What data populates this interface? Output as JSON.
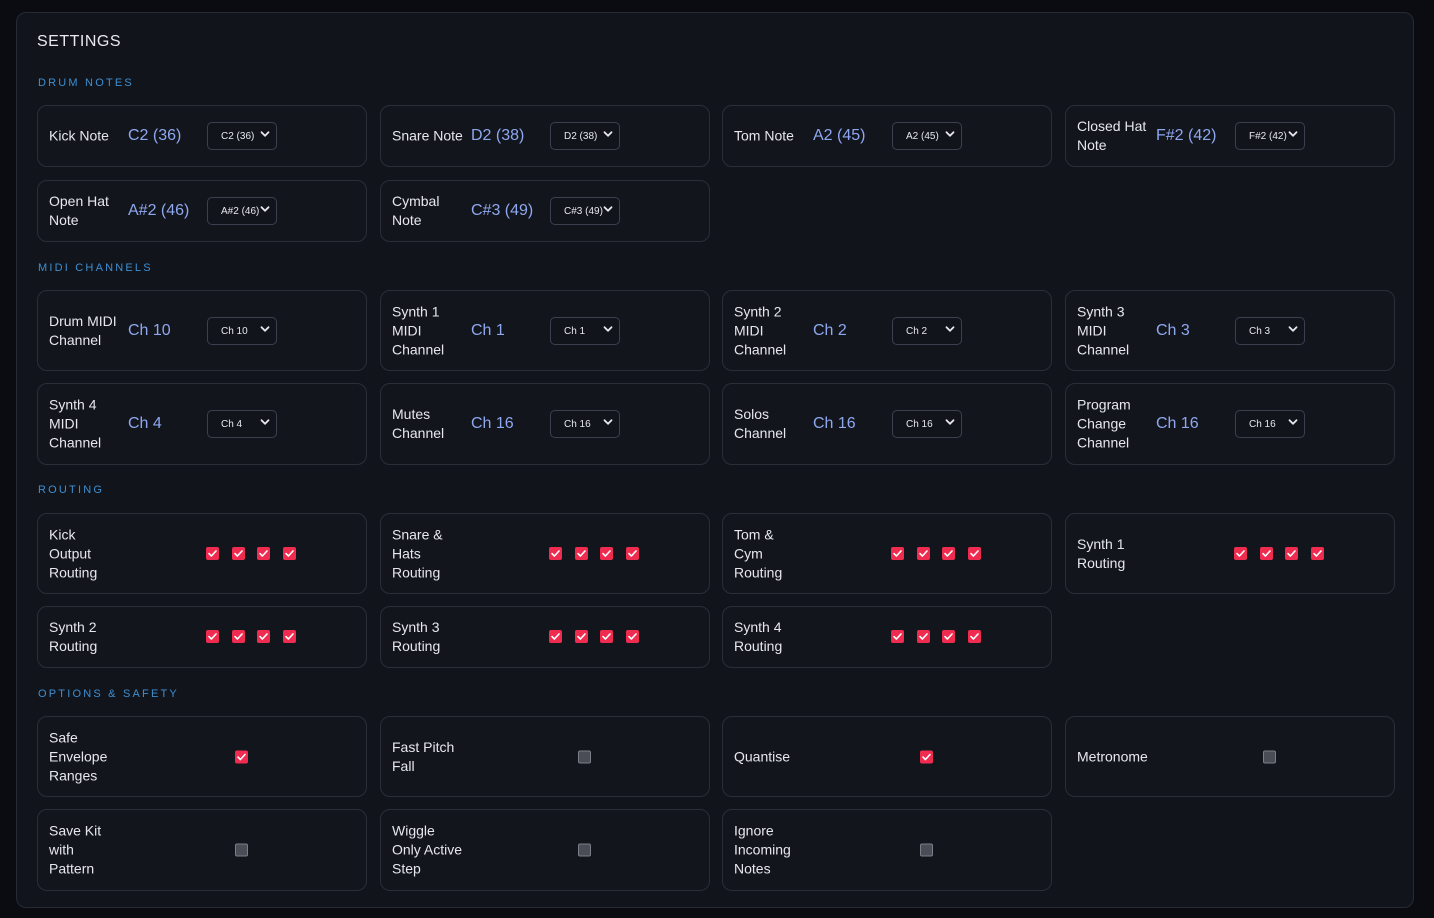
{
  "title": "SETTINGS",
  "sections": {
    "drum_notes": "DRUM NOTES",
    "midi_channels": "MIDI CHANNELS",
    "routing": "ROUTING",
    "options": "OPTIONS & SAFETY"
  },
  "colors": {
    "accent": "#ef2c4f",
    "section": "#3d8fd1",
    "value": "#8ea8f0"
  },
  "drum_notes": [
    {
      "label": "Kick Note",
      "value": "C2 (36)",
      "select": "C2 (36)"
    },
    {
      "label": "Snare Note",
      "value": "D2 (38)",
      "select": "D2 (38)"
    },
    {
      "label": "Tom Note",
      "value": "A2 (45)",
      "select": "A2 (45)"
    },
    {
      "label": "Closed Hat\nNote",
      "value": "F#2 (42)",
      "select": "F#2 (42)"
    },
    {
      "label": "Open Hat\nNote",
      "value": "A#2 (46)",
      "select": "A#2 (46)"
    },
    {
      "label": "Cymbal\nNote",
      "value": "C#3 (49)",
      "select": "C#3 (49)"
    }
  ],
  "midi_channels": [
    {
      "label": "Drum MIDI\nChannel",
      "value": "Ch 10",
      "select": "Ch 10"
    },
    {
      "label": "Synth 1\nMIDI\nChannel",
      "value": "Ch 1",
      "select": "Ch 1"
    },
    {
      "label": "Synth 2\nMIDI\nChannel",
      "value": "Ch 2",
      "select": "Ch 2"
    },
    {
      "label": "Synth 3\nMIDI\nChannel",
      "value": "Ch 3",
      "select": "Ch 3"
    },
    {
      "label": "Synth 4\nMIDI\nChannel",
      "value": "Ch 4",
      "select": "Ch 4"
    },
    {
      "label": "Mutes\nChannel",
      "value": "Ch 16",
      "select": "Ch 16"
    },
    {
      "label": "Solos\nChannel",
      "value": "Ch 16",
      "select": "Ch 16"
    },
    {
      "label": "Program\nChange\nChannel",
      "value": "Ch 16",
      "select": "Ch 16"
    }
  ],
  "routing": [
    {
      "label": "Kick\nOutput\nRouting",
      "outputs": [
        true,
        true,
        true,
        true
      ]
    },
    {
      "label": "Snare &\nHats\nRouting",
      "outputs": [
        true,
        true,
        true,
        true
      ]
    },
    {
      "label": "Tom &\nCym\nRouting",
      "outputs": [
        true,
        true,
        true,
        true
      ]
    },
    {
      "label": "Synth 1\nRouting",
      "outputs": [
        true,
        true,
        true,
        true
      ]
    },
    {
      "label": "Synth 2\nRouting",
      "outputs": [
        true,
        true,
        true,
        true
      ]
    },
    {
      "label": "Synth 3\nRouting",
      "outputs": [
        true,
        true,
        true,
        true
      ]
    },
    {
      "label": "Synth 4\nRouting",
      "outputs": [
        true,
        true,
        true,
        true
      ]
    }
  ],
  "options": [
    {
      "label": "Safe\nEnvelope\nRanges",
      "checked": true
    },
    {
      "label": "Fast Pitch\nFall",
      "checked": false
    },
    {
      "label": "Quantise",
      "checked": true
    },
    {
      "label": "Metronome",
      "checked": false
    },
    {
      "label": "Save Kit\nwith\nPattern",
      "checked": false
    },
    {
      "label": "Wiggle\nOnly Active\nStep",
      "checked": false
    },
    {
      "label": "Ignore\nIncoming\nNotes",
      "checked": false
    }
  ]
}
